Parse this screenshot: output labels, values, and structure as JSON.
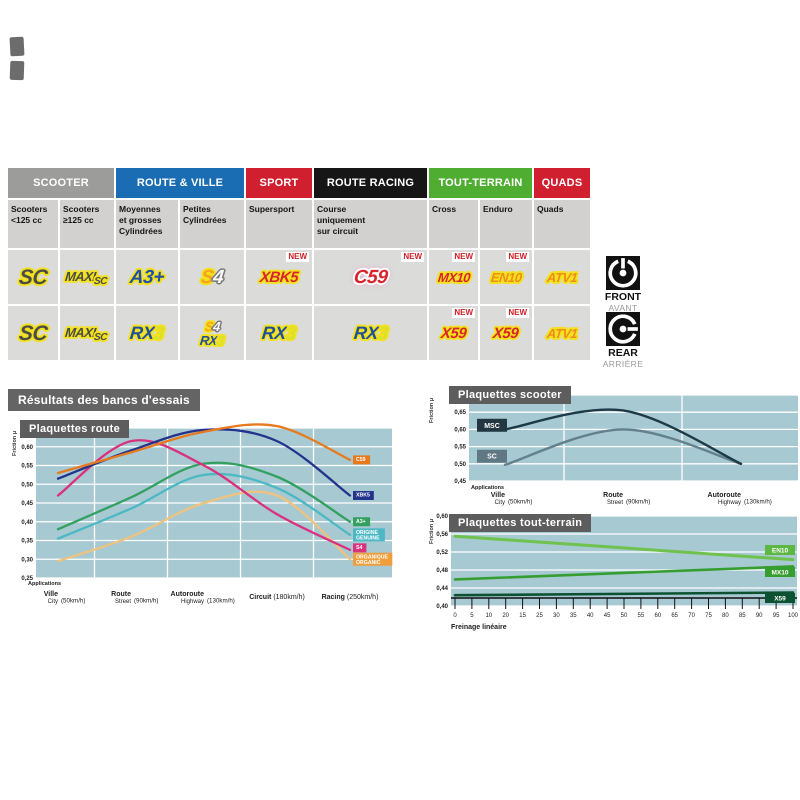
{
  "labels": {
    "new": "NEW",
    "applications": "Applications",
    "friction": "Friction μ"
  },
  "table": {
    "categories": [
      {
        "label": "SCOOTER",
        "color": "#9c9c9b",
        "span": 2
      },
      {
        "label": "ROUTE & VILLE",
        "color": "#1a6db3",
        "span": 2
      },
      {
        "label": "SPORT",
        "color": "#d01f2e",
        "span": 1
      },
      {
        "label": "ROUTE RACING",
        "color": "#161616",
        "span": 1
      },
      {
        "label": "TOUT-TERRAIN",
        "color": "#4fae32",
        "span": 2
      },
      {
        "label": "QUADS",
        "color": "#d01f2e",
        "span": 1
      }
    ],
    "subheaders": [
      "Scooters\n<125 cc",
      "Scooters\n≥125 cc",
      "Moyennes\net grosses\nCylindrées",
      "Petites\nCylindrées",
      "Supersport",
      "Course\nuniquement\nsur circuit",
      "Cross",
      "Enduro",
      "Quads"
    ],
    "front_cells": [
      {
        "products": [
          "SC"
        ],
        "new": false
      },
      {
        "products": [
          "MAXI SC"
        ],
        "new": false
      },
      {
        "products": [
          "A3+"
        ],
        "new": false
      },
      {
        "products": [
          "S4"
        ],
        "new": false
      },
      {
        "products": [
          "XBK5"
        ],
        "new": true
      },
      {
        "products": [
          "C59"
        ],
        "new": true
      },
      {
        "products": [
          "MX10"
        ],
        "new": true
      },
      {
        "products": [
          "EN10"
        ],
        "new": true
      },
      {
        "products": [
          "ATV1"
        ],
        "new": false
      }
    ],
    "rear_cells": [
      {
        "products": [
          "SC"
        ],
        "new": false
      },
      {
        "products": [
          "MAXI SC"
        ],
        "new": false
      },
      {
        "products": [
          "RX3"
        ],
        "new": false
      },
      {
        "products": [
          "S4",
          "RX3"
        ],
        "new": false
      },
      {
        "products": [
          "RX3"
        ],
        "new": false
      },
      {
        "products": [
          "RX3"
        ],
        "new": false
      },
      {
        "products": [
          "X59"
        ],
        "new": true
      },
      {
        "products": [
          "X59"
        ],
        "new": true
      },
      {
        "products": [
          "ATV1"
        ],
        "new": false
      }
    ]
  },
  "sides": {
    "front": {
      "label": "FRONT",
      "sub": "AVANT"
    },
    "rear": {
      "label": "REAR",
      "sub": "ARRIÈRE"
    }
  },
  "section_title": "Résultats des bancs d'essais",
  "chart_data": [
    {
      "id": "route",
      "type": "line",
      "title": "Plaquettes route",
      "ylabel": "Friction μ",
      "xlabel_heading": "Applications",
      "ylim": [
        0.25,
        0.65
      ],
      "ytick_step": 0.05,
      "grid": true,
      "legend_position": "right-end-labels",
      "categories": [
        {
          "fr": "Ville",
          "en": "City",
          "speed": "(50km/h)"
        },
        {
          "fr": "Route",
          "en": "Street",
          "speed": "(90km/h)"
        },
        {
          "fr": "Autoroute",
          "en": "Highway",
          "speed": "(130km/h)"
        },
        {
          "fr": "Circuit",
          "en": "",
          "speed": "(180km/h)"
        },
        {
          "fr": "Racing",
          "en": "",
          "speed": "(250km/h)"
        }
      ],
      "series": [
        {
          "name": "C59",
          "color": "#e87a1e",
          "values": [
            0.53,
            0.585,
            0.64,
            0.655,
            0.565
          ]
        },
        {
          "name": "XBK5",
          "color": "#24338c",
          "values": [
            0.515,
            0.59,
            0.645,
            0.615,
            0.47
          ]
        },
        {
          "name": "S4",
          "color": "#d9317e",
          "values": [
            0.47,
            0.615,
            0.55,
            0.42,
            0.325
          ]
        },
        {
          "name": "A3+",
          "color": "#33a060",
          "values": [
            0.38,
            0.465,
            0.555,
            0.52,
            0.4
          ]
        },
        {
          "name": "ORIGINE GENUINE",
          "label_lines": [
            "ORIGINE",
            "GENUINE"
          ],
          "color": "#4cb8c4",
          "values": [
            0.355,
            0.435,
            0.525,
            0.49,
            0.365
          ]
        },
        {
          "name": "ORGANIQUE ORGANIC",
          "label_lines": [
            "ORGANIQUE",
            "ORGANIC"
          ],
          "label_bg": "#f09e3c",
          "color": "#efc27d",
          "values": [
            0.295,
            0.36,
            0.45,
            0.47,
            0.3
          ]
        }
      ]
    },
    {
      "id": "scooter",
      "type": "line",
      "title": "Plaquettes scooter",
      "ylabel": "Friction μ",
      "xlabel_heading": "Applications",
      "ylim": [
        0.45,
        0.7
      ],
      "ytick_step": 0.05,
      "grid": true,
      "legend_position": "left-start-labels",
      "categories": [
        {
          "fr": "Ville",
          "en": "City",
          "speed": "(50km/h)"
        },
        {
          "fr": "Route",
          "en": "Street",
          "speed": "(90km/h)"
        },
        {
          "fr": "Autoroute",
          "en": "Highway",
          "speed": "(130km/h)"
        }
      ],
      "series": [
        {
          "name": "MSC",
          "color": "#1d3a46",
          "label_bg": "#223741",
          "values": [
            0.6,
            0.655,
            0.5
          ]
        },
        {
          "name": "SC",
          "color": "#64808d",
          "label_bg": "#5f7884",
          "values": [
            0.497,
            0.6,
            0.5
          ]
        }
      ]
    },
    {
      "id": "tout-terrain",
      "type": "line",
      "title": "Plaquettes tout-terrain",
      "ylabel": "Friction μ",
      "xlabel": "Freinage linéaire",
      "ylim": [
        0.4,
        0.6
      ],
      "ytick_step": 0.04,
      "grid": true,
      "legend_position": "right-end-labels",
      "xticks": [
        "0",
        "5",
        "10",
        "20",
        "15",
        "25",
        "30",
        "35",
        "40",
        "45",
        "50",
        "55",
        "60",
        "65",
        "70",
        "75",
        "80",
        "85",
        "90",
        "95",
        "100"
      ],
      "series": [
        {
          "name": "EN10",
          "color": "#6ec24d",
          "label_bg": "#5cb842",
          "values": [
            0.555,
            0.503
          ]
        },
        {
          "name": "MX10",
          "color": "#359e2f",
          "label_bg": "#359e2f",
          "values": [
            0.459,
            0.488
          ]
        },
        {
          "name": "X59",
          "color": "#0c5231",
          "label_bg": "#0c5231",
          "values": [
            0.424,
            0.43
          ]
        }
      ]
    }
  ]
}
